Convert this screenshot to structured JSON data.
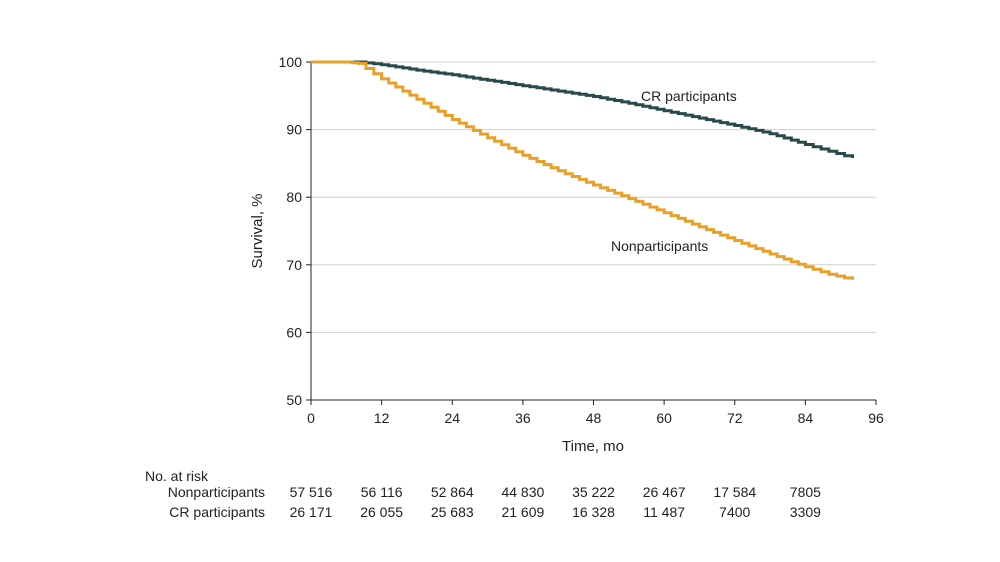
{
  "chart_data": {
    "type": "line",
    "xlabel": "Time, mo",
    "ylabel": "Survival, %",
    "xlim": [
      0,
      96
    ],
    "ylim": [
      50,
      100
    ],
    "xticks": [
      0,
      12,
      24,
      36,
      48,
      60,
      72,
      84,
      96
    ],
    "yticks": [
      50,
      60,
      70,
      80,
      90,
      100
    ],
    "grid": "horizontal",
    "series": [
      {
        "name": "CR participants",
        "color": "#2a4a4a",
        "x": [
          0,
          6,
          8,
          12,
          18,
          24,
          30,
          36,
          42,
          48,
          54,
          60,
          66,
          72,
          78,
          84,
          88,
          92
        ],
        "y": [
          100,
          100,
          100,
          99.6,
          98.8,
          98.1,
          97.3,
          96.5,
          95.7,
          94.9,
          93.9,
          92.8,
          91.7,
          90.6,
          89.4,
          87.8,
          86.8,
          85.8
        ]
      },
      {
        "name": "Nonparticipants",
        "color": "#e8a02a",
        "x": [
          0,
          6,
          8,
          12,
          18,
          24,
          30,
          36,
          42,
          48,
          54,
          60,
          66,
          72,
          78,
          84,
          88,
          92
        ],
        "y": [
          100,
          100,
          99.8,
          97.5,
          94.5,
          91.5,
          88.8,
          86.2,
          83.9,
          81.8,
          79.8,
          77.7,
          75.6,
          73.6,
          71.6,
          69.7,
          68.6,
          67.8
        ]
      }
    ],
    "at_risk": {
      "title": "No. at risk",
      "rows": [
        {
          "label": "Nonparticipants",
          "values": [
            "57 516",
            "56 116",
            "52 864",
            "44 830",
            "35 222",
            "26 467",
            "17 584",
            "7805"
          ]
        },
        {
          "label": "CR participants",
          "values": [
            "26 171",
            "26 055",
            "25 683",
            "21 609",
            "16 328",
            "11 487",
            "7400",
            "3309"
          ]
        }
      ]
    }
  }
}
